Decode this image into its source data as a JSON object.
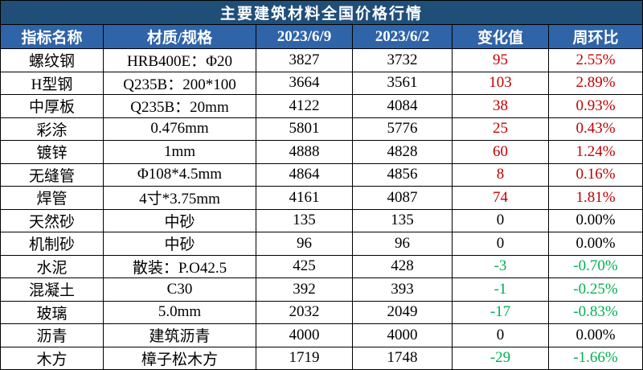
{
  "header": {
    "title": "主要建筑材料全国价格行情"
  },
  "table": {
    "columns": [
      "指标名称",
      "材质/规格",
      "2023/6/9",
      "2023/6/2",
      "变化值",
      "周环比"
    ],
    "rows": [
      [
        "螺纹钢",
        "HRB400E：Φ20",
        "3827",
        "3732",
        "95",
        "2.55%"
      ],
      [
        "H型钢",
        "Q235B：200*100",
        "3664",
        "3561",
        "103",
        "2.89%"
      ],
      [
        "中厚板",
        "Q235B：20mm",
        "4122",
        "4084",
        "38",
        "0.93%"
      ],
      [
        "彩涂",
        "0.476mm",
        "5801",
        "5776",
        "25",
        "0.43%"
      ],
      [
        "镀锌",
        "1mm",
        "4888",
        "4828",
        "60",
        "1.24%"
      ],
      [
        "无缝管",
        "Φ108*4.5mm",
        "4864",
        "4856",
        "8",
        "0.16%"
      ],
      [
        "焊管",
        "4寸*3.75mm",
        "4161",
        "4087",
        "74",
        "1.81%"
      ],
      [
        "天然砂",
        "中砂",
        "135",
        "135",
        "0",
        "0.00%"
      ],
      [
        "机制砂",
        "中砂",
        "96",
        "96",
        "0",
        "0.00%"
      ],
      [
        "水泥",
        "散装：P.O42.5",
        "425",
        "428",
        "-3",
        "-0.70%"
      ],
      [
        "混凝土",
        "C30",
        "392",
        "393",
        "-1",
        "-0.25%"
      ],
      [
        "玻璃",
        "5.0mm",
        "2032",
        "2049",
        "-17",
        "-0.83%"
      ],
      [
        "沥青",
        "建筑沥青",
        "4000",
        "4000",
        "0",
        "0.00%"
      ],
      [
        "木方",
        "樟子松木方",
        "1719",
        "1748",
        "-29",
        "-1.66%"
      ]
    ]
  }
}
